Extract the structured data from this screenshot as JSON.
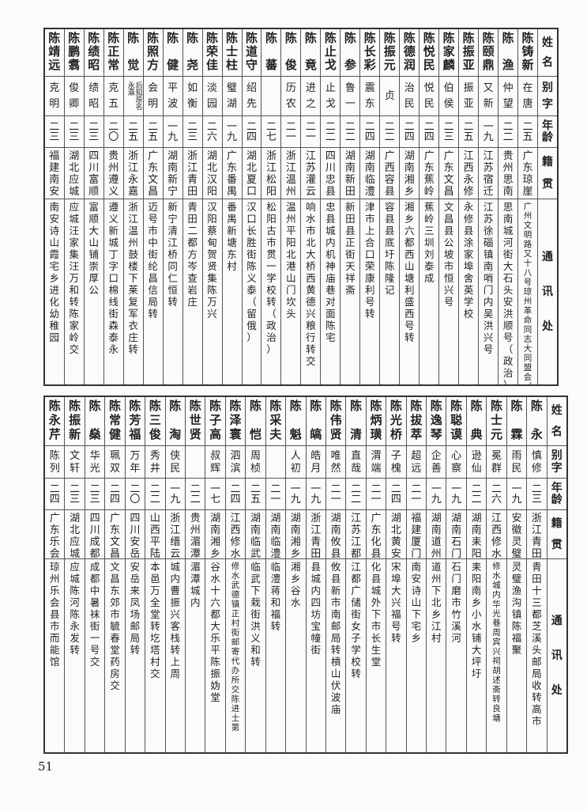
{
  "page_number": "51",
  "headers": [
    "姓名",
    "别字",
    "年龄",
    "籍贯",
    "通讯处"
  ],
  "tables": [
    {
      "people": [
        {
          "name": "陈铸新",
          "courtesy": "在唐",
          "age": "二五",
          "native": "广东琼崖",
          "address": "广州文明路又十八号琼州革命同志大同盟会（政治）"
        },
        {
          "name": "陈渔",
          "courtesy": "仲望",
          "age": "二二",
          "native": "贵州思南",
          "address": "思南城河街大石头安洪顺号（政治）"
        },
        {
          "name": "陈颐鼎",
          "courtesy": "又新",
          "age": "一九",
          "native": "江苏宿迁",
          "address": "江苏徐碯镇南哨门内吴洪兴号"
        },
        {
          "name": "陈振亚",
          "courtesy": "振亚",
          "age": "二五",
          "native": "江西永修",
          "address": "永修县涂家埠舍英学校"
        },
        {
          "name": "陈家麟",
          "courtesy": "伯侯",
          "age": "二三",
          "native": "广东文昌",
          "address": "文昌县公坡市恒兴号"
        },
        {
          "name": "陈悦民",
          "courtesy": "悦民",
          "age": "二四",
          "native": "广东蕉岭",
          "address": "蕉岭三圳刘泰成"
        },
        {
          "name": "陈德润",
          "courtesy": "治民",
          "age": "二四",
          "native": "湖南湘乡",
          "address": "湘乡六都西山塘利盛西号转"
        },
        {
          "name": "陈振元",
          "courtesy": "贞",
          "age": "二二",
          "native": "广西容县",
          "address": "容县县底圩陈隆记"
        },
        {
          "name": "陈长彩",
          "courtesy": "震东",
          "age": "二四",
          "native": "湖南临澧",
          "address": "津市上合口荣康利号转"
        },
        {
          "name": "陈参",
          "courtesy": "鲁一",
          "age": "二二",
          "native": "湖南新田",
          "address": "新田县正街天祥斋"
        },
        {
          "name": "陈止戈",
          "courtesy": "止戈",
          "age": "二二",
          "native": "四川忠县",
          "address": "忠县城内机神庙巷对面陈宅"
        },
        {
          "name": "陈竟",
          "courtesy": "进之",
          "age": "二一",
          "native": "江苏灌云",
          "address": "响水市北大桥西黄德兴粮行转交"
        },
        {
          "name": "陈俊",
          "courtesy": "历农",
          "age": "二一",
          "native": "浙江温州",
          "address": "温州平阳北港山门坎头"
        },
        {
          "name": "陈蕃",
          "courtesy": "",
          "age": "二七",
          "native": "浙江松阳",
          "address": "松阳古市贯一学校转（政治）"
        },
        {
          "name": "陈道守",
          "courtesy": "绍先",
          "age": "二四",
          "native": "湖北夏口",
          "address": "汉口长胜街陈义泰（留俄）"
        },
        {
          "name": "陈士柱",
          "courtesy": "璧湖",
          "age": "一九",
          "native": "广东番禺",
          "address": "番禺新塘东村"
        },
        {
          "name": "陈荣佳",
          "courtesy": "淡园",
          "age": "二六",
          "native": "湖北汉阳",
          "address": "汉阳蔡甸贺贤集陈万兴"
        },
        {
          "name": "陈尧",
          "courtesy": "如衡",
          "age": "二三",
          "native": "浙江青田",
          "address": "青田二都方岑查岩庄"
        },
        {
          "name": "陈健",
          "courtesy": "平波",
          "age": "一九",
          "native": "湖南新宁",
          "address": "新宁清江桥同仁恒转"
        },
        {
          "name": "陈照方",
          "courtesy": "会明",
          "age": "二五",
          "native": "广东文昌",
          "address": "迈号市中街纶昌信局转"
        },
        {
          "name": "陈觉",
          "courtesy": "后知原名永瀛",
          "age": "二五",
          "native": "浙江永嘉",
          "address": "浙江温州鼓楼下莱复军衣庄转"
        },
        {
          "name": "陈正常",
          "courtesy": "克五",
          "age": "二〇",
          "native": "贵州遵义",
          "address": "遵义新城丁字口棉线街森泰永"
        },
        {
          "name": "陈绩昭",
          "courtesy": "绩昭",
          "age": "二三",
          "native": "四川富顺",
          "address": "富顺大山铺崇厚公"
        },
        {
          "name": "陈鹏翥",
          "courtesy": "俊卿",
          "age": "二三",
          "native": "湖北应城",
          "address": "应城汪家集汪万和转陈家岭交"
        },
        {
          "name": "陈靖远",
          "courtesy": "克明",
          "age": "二三",
          "native": "福建南安",
          "address": "南安诗山霞宅乡进化幼稚园"
        }
      ]
    },
    {
      "people": [
        {
          "name": "陈永",
          "courtesy": "慎修",
          "age": "二三",
          "native": "浙江青田",
          "address": "青田十三都芝溪头邮局收转高市"
        },
        {
          "name": "陈霖",
          "courtesy": "雨民",
          "age": "一九",
          "native": "安徽灵璧",
          "address": "灵璧渔沟镇陈福聚"
        },
        {
          "name": "陈士元",
          "courtesy": "冕群",
          "age": "二六",
          "native": "江西修水",
          "address": "修水城内华光巷周宾兴祠胡述斋转良塘"
        },
        {
          "name": "陈典",
          "courtesy": "逊仙",
          "age": "二二",
          "native": "湖南耒阳",
          "address": "耒阳南乡小水铺大坪圩"
        },
        {
          "name": "陈聪谟",
          "courtesy": "心察",
          "age": "一九",
          "native": "湖南石门",
          "address": "石门磨市竹溪河"
        },
        {
          "name": "陈逸琴",
          "courtesy": "企善",
          "age": "一九",
          "native": "湖南道州",
          "address": "道州下北乡江村"
        },
        {
          "name": "陈拔萃",
          "courtesy": "超远",
          "age": "二一",
          "native": "福建厦门",
          "address": "南安诗山下宅乡"
        },
        {
          "name": "陈光桥",
          "courtesy": "子槐",
          "age": "二四",
          "native": "湖北黄安",
          "address": "宋埠大兴福号转"
        },
        {
          "name": "陈炳璜",
          "courtesy": "渭端",
          "age": "二一",
          "native": "广东化县",
          "address": "化县城外下市长生堂"
        },
        {
          "name": "陈清",
          "courtesy": "直哉",
          "age": "二二",
          "native": "江苏江都",
          "address": "江都广储街女子学校转"
        },
        {
          "name": "陈伟贤",
          "courtesy": "唯然",
          "age": "二一",
          "native": "湖南攸县",
          "address": "攸县新市南邮局转槓山伏波庙"
        },
        {
          "name": "陈皜",
          "courtesy": "皓月",
          "age": "一九",
          "native": "浙江青田",
          "address": "县城内四坊宝幢街"
        },
        {
          "name": "陈魁",
          "courtesy": "人初",
          "age": "一九",
          "native": "湖南湘乡",
          "address": "湘乡谷水"
        },
        {
          "name": "陈采夫",
          "courtesy": "",
          "age": "二一",
          "native": "湖南临澧",
          "address": "临澧蒋和福转"
        },
        {
          "name": "陈恺",
          "courtesy": "周桢",
          "age": "二五",
          "native": "湖南临武",
          "address": "临武下栽街洪义和转"
        },
        {
          "name": "陈泽寰",
          "courtesy": "泗滨",
          "age": "二四",
          "native": "江西修水",
          "address": "修水武德镇正村街邮寄代办所交陈进士第"
        },
        {
          "name": "陈子高",
          "courtesy": "叔辉",
          "age": "一七",
          "native": "湖南湘乡",
          "address": "谷水十六都大乐平陈振妫堂"
        },
        {
          "name": "陈世贤",
          "courtesy": "",
          "age": "二二",
          "native": "贵州湄潭",
          "address": "湄潭城内"
        },
        {
          "name": "陈淘",
          "courtesy": "侠民",
          "age": "一九",
          "native": "浙江缙云",
          "address": "城内曹振兴客栈转上周"
        },
        {
          "name": "陈三俊",
          "courtesy": "秀井",
          "age": "二二",
          "native": "山西平陆",
          "address": "本邑万全堂转圪塔村交"
        },
        {
          "name": "陈芳福",
          "courtesy": "万年",
          "age": "二〇",
          "native": "四川安岳",
          "address": "安岳来凤场邮局转"
        },
        {
          "name": "陈常健",
          "courtesy": "珮双",
          "age": "二四",
          "native": "广东文昌",
          "address": "文昌东郊市毓春堂药房交"
        },
        {
          "name": "陈燊",
          "courtesy": "华光",
          "age": "二三",
          "native": "四川成都",
          "address": "成都中暑袜街一号交"
        },
        {
          "name": "陈振新",
          "courtesy": "文轩",
          "age": "二三",
          "native": "湖北应城",
          "address": "应城陈河陈永发转"
        },
        {
          "name": "陈永芹",
          "courtesy": "陈列",
          "age": "二四",
          "native": "广东乐会",
          "address": "琼州乐会县市而能馆"
        }
      ]
    }
  ]
}
